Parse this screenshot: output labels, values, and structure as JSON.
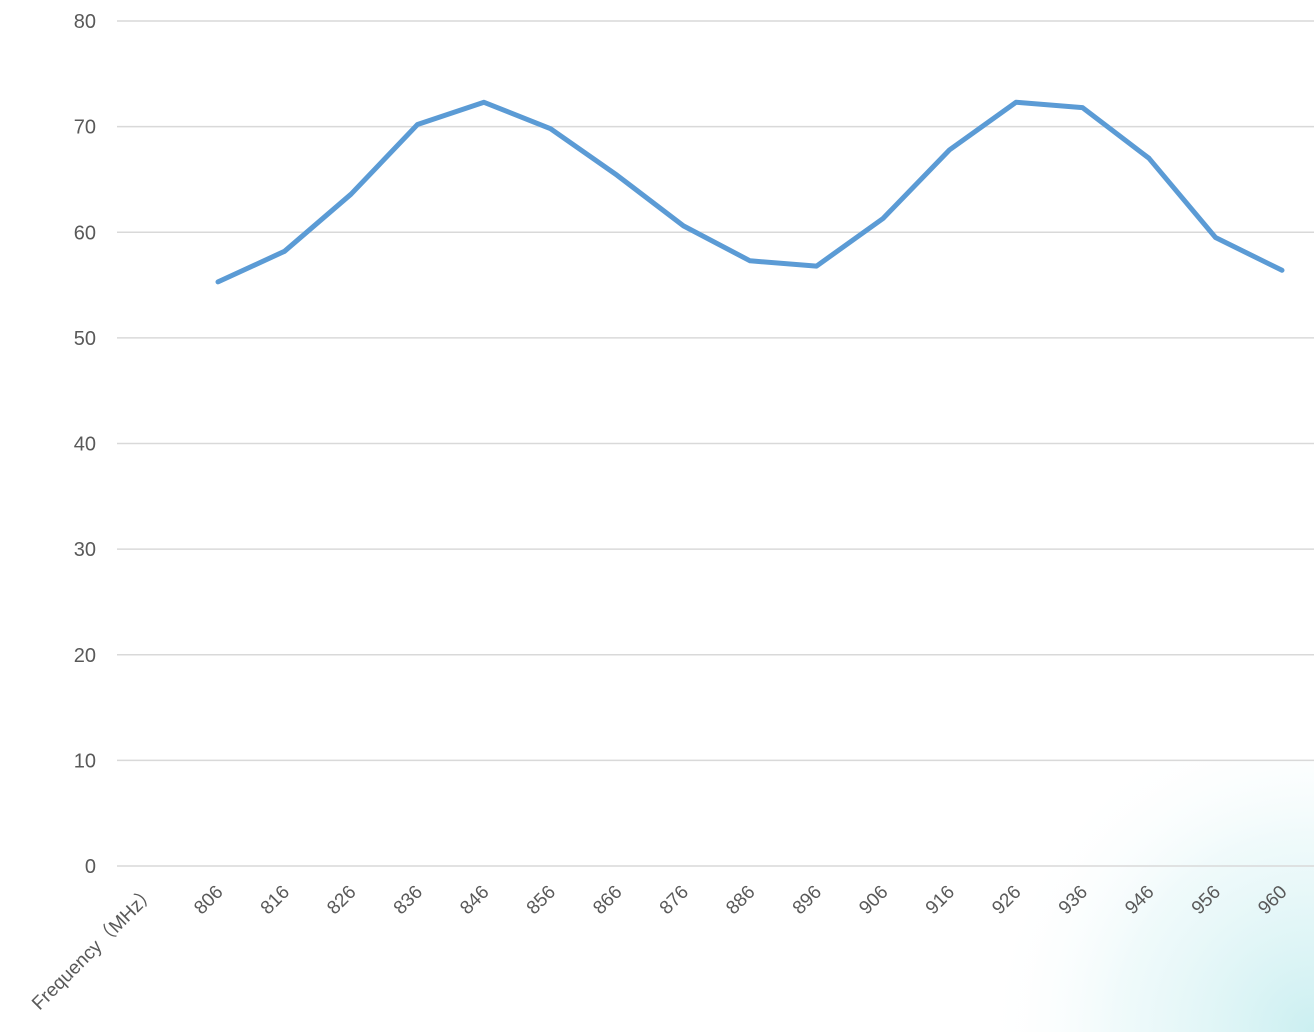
{
  "chart_data": {
    "type": "line",
    "title": "",
    "xlabel": "",
    "ylabel": "",
    "ylim": [
      0,
      80
    ],
    "y_ticks": [
      "0",
      "10",
      "20",
      "30",
      "40",
      "50",
      "60",
      "70",
      "80"
    ],
    "grid": true,
    "legend": "none",
    "categories": [
      "Frequency（MHz）",
      "806",
      "816",
      "826",
      "836",
      "846",
      "856",
      "866",
      "876",
      "886",
      "896",
      "906",
      "916",
      "926",
      "936",
      "946",
      "956",
      "960"
    ],
    "series": [
      {
        "values": [
          null,
          55.3,
          58.2,
          63.6,
          70.2,
          72.3,
          69.8,
          65.4,
          60.6,
          57.3,
          56.8,
          61.3,
          67.8,
          72.3,
          71.8,
          67.0,
          59.5,
          56.4
        ],
        "color": "#5b9bd5"
      }
    ],
    "colors": {
      "line": "#5b9bd5",
      "grid": "#d9d9d9",
      "text": "#595959",
      "corner_tint": "#d2f0f0"
    }
  }
}
